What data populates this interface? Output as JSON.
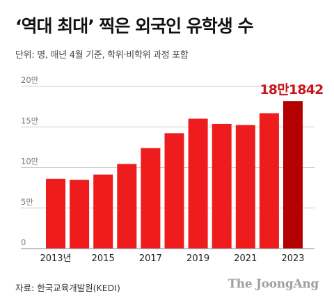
{
  "header": {
    "title": "‘역대 최대’ 찍은 외국인 유학생 수",
    "subtitle": "단위: 명, 매년 4월 기준, 학위·비학위 과정 포함"
  },
  "footer": {
    "source": "자료: 한국교육개발원(KEDI)",
    "brand": "The JoongAng"
  },
  "colors": {
    "bar": "#ee1c1c",
    "highlight_bar": "#b30000",
    "label": "#c8161d",
    "grid": "#cfcfcf"
  },
  "chart_data": {
    "type": "bar",
    "categories": [
      "2013",
      "2014",
      "2015",
      "2016",
      "2017",
      "2018",
      "2019",
      "2020",
      "2021",
      "2022",
      "2023"
    ],
    "values": [
      86000,
      84800,
      91300,
      104300,
      123900,
      142200,
      160100,
      153700,
      152300,
      166900,
      181842
    ],
    "ylim": [
      0,
      200000
    ],
    "yticks": [
      {
        "value": 0,
        "label": "0"
      },
      {
        "value": 50000,
        "label": "5만"
      },
      {
        "value": 100000,
        "label": "10만"
      },
      {
        "value": 150000,
        "label": "15만"
      },
      {
        "value": 200000,
        "label": "20만"
      }
    ],
    "xticks": [
      {
        "index": 0,
        "label": "2013년"
      },
      {
        "index": 2,
        "label": "2015"
      },
      {
        "index": 4,
        "label": "2017"
      },
      {
        "index": 6,
        "label": "2019"
      },
      {
        "index": 8,
        "label": "2021"
      },
      {
        "index": 10,
        "label": "2023"
      }
    ],
    "highlight_index": 10,
    "annotation": "18만1842",
    "grid": true
  }
}
